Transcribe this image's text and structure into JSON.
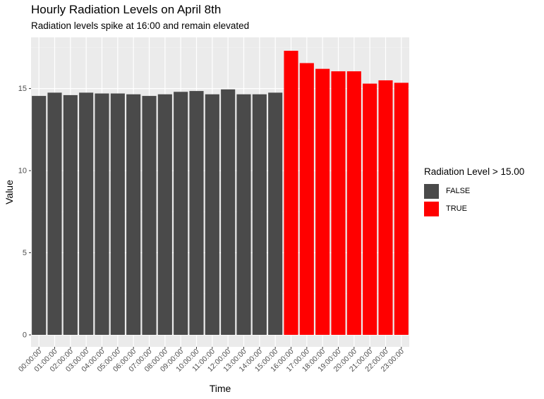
{
  "chart_data": {
    "type": "bar",
    "title": "Hourly Radiation Levels on April 8th",
    "subtitle": "Radiation levels spike at 16:00 and remain elevated",
    "xlabel": "Time",
    "ylabel": "Value",
    "ylim": [
      0,
      17.8
    ],
    "yticks": [
      0,
      5,
      10,
      15
    ],
    "grid": true,
    "legend_position": "right",
    "legend_title": "Radiation Level > 15.00",
    "legend": [
      {
        "label": "FALSE",
        "color": "#4a4a4a"
      },
      {
        "label": "TRUE",
        "color": "#ff0000"
      }
    ],
    "categories": [
      "00:00:00",
      "01:00:00",
      "02:00:00",
      "03:00:00",
      "04:00:00",
      "05:00:00",
      "06:00:00",
      "07:00:00",
      "08:00:00",
      "09:00:00",
      "10:00:00",
      "11:00:00",
      "12:00:00",
      "13:00:00",
      "14:00:00",
      "15:00:00",
      "16:00:00",
      "17:00:00",
      "18:00:00",
      "19:00:00",
      "20:00:00",
      "21:00:00",
      "22:00:00",
      "23:00:00"
    ],
    "values": [
      14.55,
      14.75,
      14.6,
      14.75,
      14.7,
      14.7,
      14.65,
      14.55,
      14.65,
      14.8,
      14.85,
      14.65,
      14.95,
      14.65,
      14.65,
      14.75,
      17.3,
      16.55,
      16.2,
      16.05,
      16.05,
      15.3,
      15.5,
      15.35
    ],
    "group": [
      "FALSE",
      "FALSE",
      "FALSE",
      "FALSE",
      "FALSE",
      "FALSE",
      "FALSE",
      "FALSE",
      "FALSE",
      "FALSE",
      "FALSE",
      "FALSE",
      "FALSE",
      "FALSE",
      "FALSE",
      "FALSE",
      "TRUE",
      "TRUE",
      "TRUE",
      "TRUE",
      "TRUE",
      "TRUE",
      "TRUE",
      "TRUE"
    ]
  }
}
